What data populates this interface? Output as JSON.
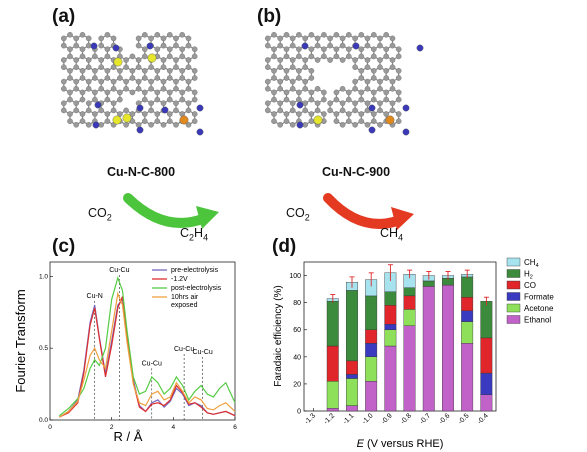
{
  "panels": {
    "a": {
      "label": "(a)",
      "caption": "Cu-N-C-800",
      "reaction_reactant": "CO2",
      "reaction_product": "C2H4"
    },
    "b": {
      "label": "(b)",
      "caption": "Cu-N-C-900",
      "reaction_reactant": "CO2",
      "reaction_product": "CH4"
    },
    "c": {
      "label": "(c)"
    },
    "d": {
      "label": "(d)"
    }
  },
  "colors": {
    "atom_c": "#9a9a9a",
    "atom_n": "#3a3ab8",
    "atom_s": "#e6e62a",
    "atom_cu": "#e08a1e",
    "arrow_a": "#4cc43c",
    "arrow_b": "#e43a22",
    "ch4": "#a6e3ee",
    "h2": "#3c8a3c",
    "co": "#e0262a",
    "formate": "#3a3ac0",
    "acetone": "#8ee05a",
    "ethanol": "#c062c8",
    "line_pre": "#7766bb",
    "line_12": "#dd2f2f",
    "line_post": "#55cc44",
    "line_air": "#f0a040"
  },
  "chart_data": [
    {
      "panel": "c",
      "type": "line",
      "xlabel": "R / Å",
      "ylabel": "Fourier Transform",
      "xlim": [
        0,
        6
      ],
      "ylim": [
        0,
        1.1
      ],
      "x_ticks": [
        "0",
        "2",
        "4",
        "6"
      ],
      "y_ticks": [
        "0.0",
        "0.5",
        "1.0"
      ],
      "legend_position": "top-right",
      "annotations": [
        "Cu-N",
        "Cu-Cu",
        "Cu-Cu",
        "Cu-Cu",
        "Cu-Cu"
      ],
      "x": [
        0.3,
        0.6,
        0.9,
        1.1,
        1.3,
        1.45,
        1.6,
        1.8,
        2.0,
        2.2,
        2.35,
        2.5,
        2.7,
        2.9,
        3.1,
        3.3,
        3.5,
        3.7,
        3.9,
        4.1,
        4.3,
        4.5,
        4.7,
        4.9,
        5.1,
        5.3,
        5.5,
        5.7,
        6.0
      ],
      "series": [
        {
          "name": "pre-electrolysis",
          "color_key": "line_pre",
          "values": [
            0.02,
            0.06,
            0.14,
            0.35,
            0.68,
            0.8,
            0.58,
            0.32,
            0.55,
            0.8,
            0.84,
            0.6,
            0.28,
            0.1,
            0.06,
            0.12,
            0.14,
            0.09,
            0.13,
            0.22,
            0.18,
            0.1,
            0.12,
            0.1,
            0.05,
            0.04,
            0.05,
            0.06,
            0.03
          ]
        },
        {
          "name": "-1.2V",
          "color_key": "line_12",
          "values": [
            0.02,
            0.05,
            0.12,
            0.33,
            0.66,
            0.78,
            0.57,
            0.3,
            0.52,
            0.78,
            0.86,
            0.58,
            0.26,
            0.09,
            0.06,
            0.11,
            0.12,
            0.1,
            0.14,
            0.24,
            0.19,
            0.11,
            0.12,
            0.09,
            0.05,
            0.04,
            0.05,
            0.06,
            0.03
          ]
        },
        {
          "name": "post-electrolysis",
          "color_key": "line_post",
          "values": [
            0.03,
            0.08,
            0.15,
            0.22,
            0.36,
            0.42,
            0.38,
            0.5,
            0.84,
            0.99,
            0.9,
            0.62,
            0.3,
            0.18,
            0.2,
            0.3,
            0.26,
            0.18,
            0.22,
            0.3,
            0.24,
            0.14,
            0.2,
            0.24,
            0.18,
            0.16,
            0.22,
            0.26,
            0.12
          ]
        },
        {
          "name": "10hrs air\nexposed",
          "color_key": "line_air",
          "values": [
            0.02,
            0.06,
            0.13,
            0.28,
            0.45,
            0.5,
            0.42,
            0.36,
            0.62,
            0.88,
            0.8,
            0.54,
            0.25,
            0.12,
            0.1,
            0.18,
            0.2,
            0.14,
            0.16,
            0.26,
            0.2,
            0.12,
            0.16,
            0.14,
            0.08,
            0.07,
            0.1,
            0.12,
            0.06
          ]
        }
      ]
    },
    {
      "panel": "d",
      "type": "bar",
      "stacked": true,
      "xlabel": "E (V versus RHE)",
      "ylabel": "Faradaic efficiency (%)",
      "ylim": [
        0,
        110
      ],
      "y_ticks": [
        "0",
        "20",
        "40",
        "60",
        "80",
        "100"
      ],
      "x_ticks": [
        "-1.3",
        "-1.2",
        "-1.1",
        "-1.0",
        "-0.9",
        "-0.8",
        "-0.7",
        "-0.6",
        "-0.5",
        "-0.4"
      ],
      "categories": [
        "-1.2",
        "-1.1",
        "-1.0",
        "-0.9",
        "-0.8",
        "-0.7",
        "-0.6",
        "-0.5",
        "-0.4"
      ],
      "legend_position": "right",
      "series": [
        {
          "name": "Ethanol",
          "color_key": "ethanol",
          "values": [
            2,
            4,
            22,
            48,
            63,
            92,
            93,
            50,
            12
          ]
        },
        {
          "name": "Acetone",
          "color_key": "acetone",
          "values": [
            20,
            20,
            18,
            12,
            12,
            0,
            0,
            16,
            0
          ]
        },
        {
          "name": "Formate",
          "color_key": "formate",
          "values": [
            0,
            3,
            10,
            4,
            0,
            0,
            0,
            8,
            16
          ]
        },
        {
          "name": "CO",
          "color_key": "co",
          "values": [
            26,
            10,
            10,
            14,
            10,
            0,
            0,
            10,
            26
          ]
        },
        {
          "name": "H2",
          "color_key": "h2",
          "values": [
            33,
            52,
            25,
            10,
            6,
            4,
            5,
            15,
            27
          ]
        },
        {
          "name": "CH4",
          "color_key": "ch4",
          "values": [
            2,
            6,
            12,
            14,
            10,
            4,
            2,
            2,
            0
          ]
        }
      ],
      "error": [
        3,
        4,
        5,
        6,
        3,
        3,
        3,
        3,
        3
      ]
    }
  ]
}
